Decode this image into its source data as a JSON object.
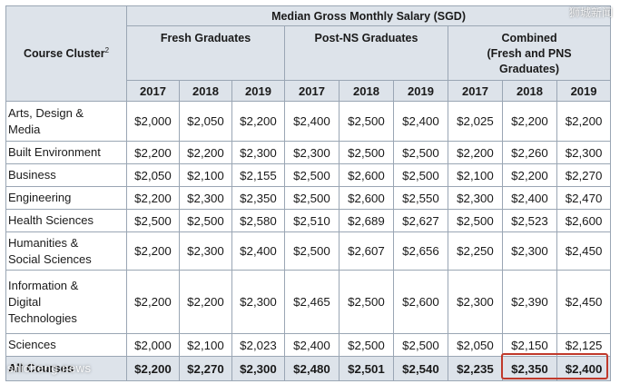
{
  "table": {
    "title": "Median Gross Monthly Salary (SGD)",
    "cluster_header": "Course Cluster",
    "cluster_header_sup": "2",
    "groups": [
      {
        "label_lines": [
          "Fresh Graduates"
        ]
      },
      {
        "label_lines": [
          "Post-NS Graduates"
        ]
      },
      {
        "label_lines": [
          "Combined",
          "(Fresh and PNS",
          "Graduates)"
        ]
      }
    ],
    "years": [
      "2017",
      "2018",
      "2019",
      "2017",
      "2018",
      "2019",
      "2017",
      "2018",
      "2019"
    ],
    "rows": [
      {
        "label_lines": [
          "Arts, Design &",
          "Media"
        ],
        "values": [
          "$2,000",
          "$2,050",
          "$2,200",
          "$2,400",
          "$2,500",
          "$2,400",
          "$2,025",
          "$2,200",
          "$2,200"
        ]
      },
      {
        "label_lines": [
          "Built Environment"
        ],
        "values": [
          "$2,200",
          "$2,200",
          "$2,300",
          "$2,300",
          "$2,500",
          "$2,500",
          "$2,200",
          "$2,260",
          "$2,300"
        ]
      },
      {
        "label_lines": [
          "Business"
        ],
        "values": [
          "$2,050",
          "$2,100",
          "$2,155",
          "$2,500",
          "$2,600",
          "$2,500",
          "$2,100",
          "$2,200",
          "$2,270"
        ]
      },
      {
        "label_lines": [
          "Engineering"
        ],
        "values": [
          "$2,200",
          "$2,300",
          "$2,350",
          "$2,500",
          "$2,600",
          "$2,550",
          "$2,300",
          "$2,400",
          "$2,470"
        ]
      },
      {
        "label_lines": [
          "Health Sciences"
        ],
        "values": [
          "$2,500",
          "$2,500",
          "$2,580",
          "$2,510",
          "$2,689",
          "$2,627",
          "$2,500",
          "$2,523",
          "$2,600"
        ]
      },
      {
        "label_lines": [
          "Humanities &",
          "Social Sciences"
        ],
        "values": [
          "$2,200",
          "$2,300",
          "$2,400",
          "$2,500",
          "$2,607",
          "$2,656",
          "$2,250",
          "$2,300",
          "$2,450"
        ]
      },
      {
        "label_lines": [
          "Information &",
          "Digital",
          "Technologies"
        ],
        "values": [
          "$2,200",
          "$2,200",
          "$2,300",
          "$2,465",
          "$2,500",
          "$2,600",
          "$2,300",
          "$2,390",
          "$2,450"
        ]
      },
      {
        "label_lines": [
          "Sciences"
        ],
        "values": [
          "$2,000",
          "$2,100",
          "$2,023",
          "$2,400",
          "$2,500",
          "$2,500",
          "$2,050",
          "$2,150",
          "$2,125"
        ]
      },
      {
        "label_lines": [
          "All Courses"
        ],
        "values": [
          "$2,200",
          "$2,270",
          "$2,300",
          "$2,480",
          "$2,501",
          "$2,540",
          "$2,235",
          "$2,350",
          "$2,400"
        ],
        "is_total": true
      }
    ],
    "colors": {
      "header_bg": "#dde3ea",
      "border": "#9aa6b4",
      "highlight": "#c0392b"
    }
  },
  "watermarks": {
    "top_right": "狮城新闻",
    "bottom_left": "shicheng.news"
  }
}
